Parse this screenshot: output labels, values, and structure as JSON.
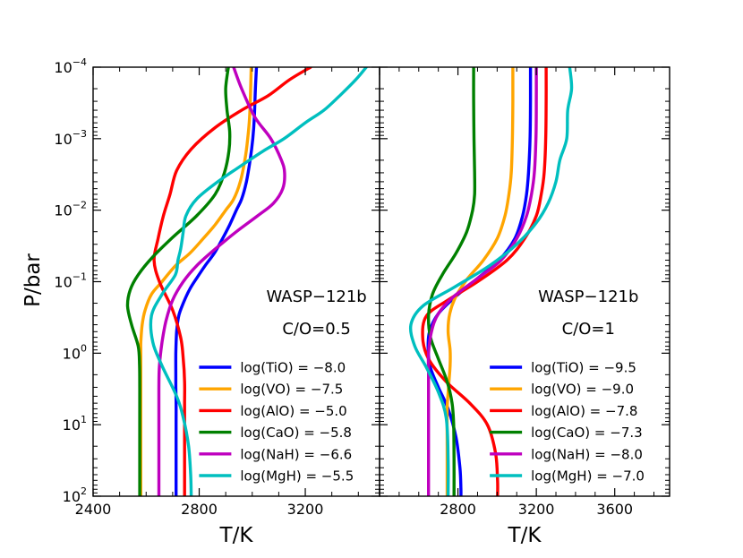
{
  "figure": {
    "ylabel": "P/bar",
    "ylabel_fontsize_note": ""
  },
  "chart_data": [
    {
      "type": "line",
      "xlabel": "T/K",
      "ylabel": "P/bar",
      "xlim": [
        2400,
        3480
      ],
      "ylim": [
        0.0001,
        100
      ],
      "yscale": "log",
      "y_inverted": true,
      "xticks": [
        2400,
        2800,
        3200
      ],
      "yticks": [
        "10^-4",
        "10^-3",
        "10^-2",
        "10^-1",
        "10^0",
        "10^1",
        "10^2"
      ],
      "annotation": [
        "WASP−121b",
        "C/O=0.5"
      ],
      "legend_position": "lower-right",
      "series": [
        {
          "name": "log(TiO) = −8.0",
          "color": "#0000ff",
          "x": [
            3016,
            3012,
            3008,
            3002,
            2992,
            2978,
            2960,
            2940,
            2915,
            2888,
            2857,
            2822,
            2790,
            2763,
            2740,
            2723,
            2715,
            2712,
            2712,
            2712,
            2713,
            2713,
            2713,
            2713,
            2713
          ],
          "y": [
            0.0001,
            0.0002,
            0.0005,
            0.001,
            0.002,
            0.004,
            0.007,
            0.01,
            0.016,
            0.025,
            0.04,
            0.06,
            0.09,
            0.13,
            0.2,
            0.3,
            0.5,
            1,
            2,
            3,
            5,
            10,
            20,
            50,
            100
          ]
        },
        {
          "name": "log(VO) = −7.5",
          "color": "#ffa500",
          "x": [
            2996,
            2994,
            2990,
            2983,
            2972,
            2955,
            2930,
            2900,
            2860,
            2815,
            2765,
            2710,
            2660,
            2620,
            2596,
            2585,
            2580,
            2580,
            2580,
            2580,
            2580,
            2580
          ],
          "y": [
            0.0001,
            0.0002,
            0.0005,
            0.001,
            0.002,
            0.004,
            0.007,
            0.01,
            0.016,
            0.025,
            0.04,
            0.06,
            0.1,
            0.15,
            0.25,
            0.4,
            0.7,
            1,
            3,
            10,
            30,
            100
          ]
        },
        {
          "name": "log(AlO) = −5.0",
          "color": "#ff0000",
          "x": [
            3220,
            3140,
            3060,
            2960,
            2860,
            2770,
            2715,
            2690,
            2665,
            2645,
            2630,
            2650,
            2700,
            2730,
            2740,
            2745,
            2745,
            2745,
            2745,
            2745
          ],
          "y": [
            0.0001,
            0.00015,
            0.00025,
            0.0004,
            0.0007,
            0.0014,
            0.0028,
            0.006,
            0.012,
            0.025,
            0.05,
            0.1,
            0.25,
            0.6,
            1.2,
            2.5,
            5,
            10,
            30,
            100
          ]
        },
        {
          "name": "log(CaO) = −5.8",
          "color": "#008000",
          "x": [
            2910,
            2900,
            2905,
            2915,
            2912,
            2895,
            2860,
            2790,
            2700,
            2625,
            2570,
            2540,
            2530,
            2545,
            2570,
            2575,
            2576,
            2576,
            2576
          ],
          "y": [
            0.0001,
            0.0002,
            0.0004,
            0.0008,
            0.0015,
            0.003,
            0.006,
            0.012,
            0.024,
            0.045,
            0.08,
            0.13,
            0.22,
            0.4,
            0.8,
            1.5,
            3,
            10,
            100
          ]
        },
        {
          "name": "log(NaH) = −6.6",
          "color": "#bf00bf",
          "x": [
            2930,
            2960,
            3010,
            3070,
            3110,
            3122,
            3115,
            3080,
            3020,
            2940,
            2860,
            2790,
            2740,
            2700,
            2675,
            2660,
            2650,
            2648,
            2648,
            2648
          ],
          "y": [
            0.0001,
            0.0002,
            0.0005,
            0.001,
            0.002,
            0.003,
            0.005,
            0.008,
            0.012,
            0.02,
            0.035,
            0.06,
            0.1,
            0.18,
            0.35,
            0.7,
            1.5,
            3,
            10,
            100
          ]
        },
        {
          "name": "log(MgH) = −5.5",
          "color": "#00bfbf",
          "x": [
            3430,
            3390,
            3330,
            3270,
            3200,
            3120,
            3040,
            2950,
            2870,
            2790,
            2750,
            2740,
            2730,
            2720,
            2710,
            2660,
            2620,
            2625,
            2660,
            2715,
            2740,
            2760,
            2768,
            2770
          ],
          "y": [
            0.0001,
            0.00015,
            0.00025,
            0.0004,
            0.0006,
            0.001,
            0.0015,
            0.0025,
            0.004,
            0.007,
            0.012,
            0.02,
            0.035,
            0.05,
            0.08,
            0.15,
            0.3,
            0.7,
            1.5,
            4,
            8,
            20,
            50,
            100
          ]
        }
      ]
    },
    {
      "type": "line",
      "xlabel": "T/K",
      "ylabel": "",
      "xlim": [
        2400,
        3880
      ],
      "ylim": [
        0.0001,
        100
      ],
      "yscale": "log",
      "y_inverted": true,
      "xticks": [
        2800,
        3200,
        3600
      ],
      "annotation": [
        "WASP−121b",
        "C/O=1"
      ],
      "legend_position": "lower-right",
      "series": [
        {
          "name": "log(TiO) = −9.5",
          "color": "#0000ff",
          "x": [
            3170,
            3170,
            3168,
            3160,
            3150,
            3130,
            3090,
            3010,
            2900,
            2790,
            2700,
            2655,
            2648,
            2660,
            2700,
            2750,
            2790,
            2810,
            2815,
            2815
          ],
          "y": [
            0.0001,
            0.0003,
            0.001,
            0.003,
            0.006,
            0.012,
            0.025,
            0.05,
            0.09,
            0.16,
            0.28,
            0.5,
            0.9,
            1.6,
            3,
            6,
            15,
            40,
            80,
            100
          ]
        },
        {
          "name": "log(VO) = −9.0",
          "color": "#ffa500",
          "x": [
            3080,
            3080,
            3078,
            3072,
            3060,
            3040,
            3000,
            2930,
            2850,
            2790,
            2758,
            2750,
            2760,
            2760,
            2752,
            2745,
            2745,
            2745
          ],
          "y": [
            0.0001,
            0.0003,
            0.001,
            0.003,
            0.006,
            0.012,
            0.025,
            0.05,
            0.09,
            0.16,
            0.28,
            0.5,
            0.9,
            1.5,
            3,
            6,
            20,
            100
          ]
        },
        {
          "name": "log(AlO) = −7.8",
          "color": "#ff0000",
          "x": [
            3250,
            3250,
            3248,
            3240,
            3225,
            3200,
            3140,
            3050,
            2900,
            2750,
            2640,
            2620,
            2650,
            2740,
            2860,
            2950,
            2992,
            3002,
            3002
          ],
          "y": [
            0.0001,
            0.0003,
            0.001,
            0.003,
            0.006,
            0.012,
            0.025,
            0.05,
            0.1,
            0.18,
            0.3,
            0.6,
            1.2,
            2.5,
            5,
            10,
            25,
            60,
            100
          ]
        },
        {
          "name": "log(CaO) = −7.3",
          "color": "#008000",
          "x": [
            2880,
            2880,
            2882,
            2885,
            2885,
            2875,
            2845,
            2790,
            2720,
            2670,
            2650,
            2660,
            2700,
            2745,
            2770,
            2778,
            2780,
            2780
          ],
          "y": [
            0.0001,
            0.0003,
            0.001,
            0.003,
            0.006,
            0.01,
            0.02,
            0.04,
            0.08,
            0.15,
            0.3,
            0.6,
            1.2,
            2.5,
            5,
            10,
            30,
            100
          ]
        },
        {
          "name": "log(NaH) = −8.0",
          "color": "#bf00bf",
          "x": [
            3200,
            3200,
            3198,
            3190,
            3175,
            3150,
            3100,
            3020,
            2900,
            2780,
            2700,
            2665,
            2650,
            2650,
            2650,
            2650,
            2650
          ],
          "y": [
            0.0001,
            0.0003,
            0.001,
            0.003,
            0.006,
            0.012,
            0.025,
            0.05,
            0.09,
            0.16,
            0.28,
            0.5,
            1,
            2,
            5,
            20,
            100
          ]
        },
        {
          "name": "log(MgH) = −7.0",
          "color": "#00bfbf",
          "x": [
            3370,
            3380,
            3360,
            3355,
            3320,
            3300,
            3260,
            3200,
            3100,
            2960,
            2780,
            2620,
            2560,
            2580,
            2640,
            2700,
            2740,
            2750,
            2750
          ],
          "y": [
            0.0001,
            0.0002,
            0.0004,
            0.001,
            0.002,
            0.004,
            0.008,
            0.015,
            0.03,
            0.06,
            0.12,
            0.22,
            0.4,
            0.8,
            1.6,
            3.5,
            8,
            30,
            100
          ]
        }
      ]
    }
  ]
}
